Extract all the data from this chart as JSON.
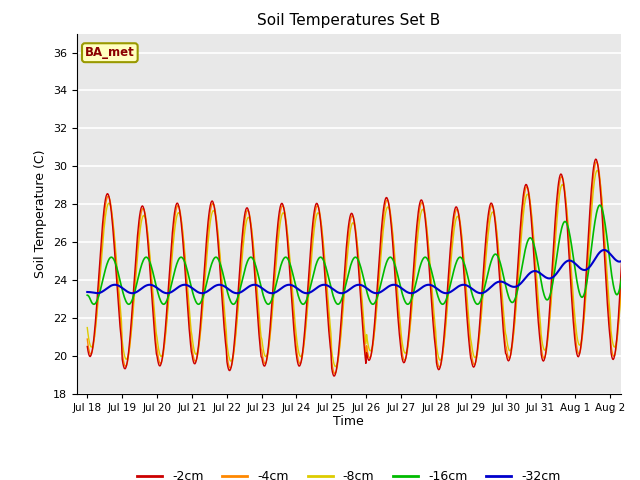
{
  "title": "Soil Temperatures Set B",
  "xlabel": "Time",
  "ylabel": "Soil Temperature (C)",
  "ylim": [
    18,
    37
  ],
  "yticks": [
    18,
    20,
    22,
    24,
    26,
    28,
    30,
    32,
    34,
    36
  ],
  "annotation_text": "BA_met",
  "annotation_bg": "#FFFFC0",
  "annotation_edge": "#999900",
  "annotation_text_color": "#8B0000",
  "colors": {
    "-2cm": "#CC0000",
    "-4cm": "#FF8800",
    "-8cm": "#DDCC00",
    "-16cm": "#00BB00",
    "-32cm": "#0000CC"
  },
  "legend_labels": [
    "-2cm",
    "-4cm",
    "-8cm",
    "-16cm",
    "-32cm"
  ],
  "bg_color": "#FFFFFF",
  "plot_bg_color": "#E8E8E8",
  "grid_color": "#FFFFFF",
  "tick_label_dates": [
    "Jul 18",
    "Jul 19",
    "Jul 20",
    "Jul 21",
    "Jul 22",
    "Jul 23",
    "Jul 24",
    "Jul 25",
    "Jul 26",
    "Jul 27",
    "Jul 28",
    "Jul 29",
    "Jul 30",
    "Jul 31",
    "Aug 1",
    "Aug 2"
  ]
}
